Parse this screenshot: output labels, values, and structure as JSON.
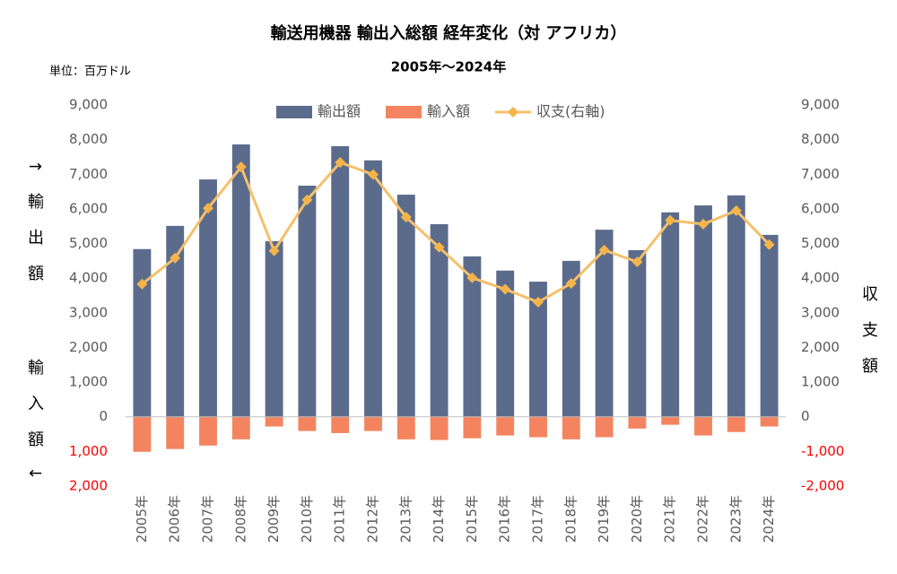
{
  "chart_data": {
    "type": "bar_line",
    "title": "輸送用機器 輸出入総額 経年変化（対 アフリカ）",
    "subtitle": "2005年～2024年",
    "unit_label": "単位：百万ドル",
    "ylabel": "↑輸出額",
    "ylabel_lower": "輸入額↓",
    "y2label": "収支額",
    "categories": [
      "2005年",
      "2006年",
      "2007年",
      "2008年",
      "2009年",
      "2010年",
      "2011年",
      "2012年",
      "2013年",
      "2014年",
      "2015年",
      "2016年",
      "2017年",
      "2018年",
      "2019年",
      "2020年",
      "2021年",
      "2022年",
      "2023年",
      "2024年"
    ],
    "series": [
      {
        "name": "輸出額",
        "type": "bar",
        "color": "#5b6b8c",
        "values": [
          4840,
          5510,
          6850,
          7860,
          5070,
          6670,
          7810,
          7400,
          6410,
          5560,
          4630,
          4220,
          3900,
          4500,
          5400,
          4810,
          5900,
          6100,
          6390,
          5250
        ]
      },
      {
        "name": "輸入額",
        "type": "bar",
        "color": "#f4845f",
        "values": [
          -1010,
          -930,
          -830,
          -650,
          -280,
          -410,
          -470,
          -410,
          -650,
          -670,
          -620,
          -540,
          -590,
          -650,
          -590,
          -340,
          -230,
          -540,
          -440,
          -280
        ]
      },
      {
        "name": "収支(右軸)",
        "type": "line",
        "axis": "y2",
        "color": "#f5c06a",
        "marker_color": "#f5b44a",
        "values": [
          3830,
          4580,
          6020,
          7210,
          4790,
          6260,
          7340,
          6990,
          5760,
          4890,
          4010,
          3680,
          3310,
          3850,
          4810,
          4470,
          5670,
          5560,
          5950,
          4970
        ]
      }
    ],
    "ylim": [
      -2000,
      9000
    ],
    "yticks": [
      {
        "value": -2000,
        "label": "2,000"
      },
      {
        "value": -1000,
        "label": "1,000"
      },
      0,
      {
        "value": 1000,
        "label": "1,000"
      },
      {
        "value": 2000,
        "label": "2,000"
      },
      {
        "value": 3000,
        "label": "3,000"
      },
      {
        "value": 4000,
        "label": "4,000"
      },
      {
        "value": 5000,
        "label": "5,000"
      },
      {
        "value": 6000,
        "label": "6,000"
      },
      {
        "value": 7000,
        "label": "7,000"
      },
      {
        "value": 8000,
        "label": "8,000"
      },
      {
        "value": 9000,
        "label": "9,000"
      }
    ],
    "y2lim": [
      -2000,
      9000
    ],
    "y2ticks": [
      {
        "value": -2000,
        "label": "-2,000"
      },
      {
        "value": -1000,
        "label": "-1,000"
      },
      0,
      {
        "value": 1000,
        "label": "1,000"
      },
      {
        "value": 2000,
        "label": "2,000"
      },
      {
        "value": 3000,
        "label": "3,000"
      },
      {
        "value": 4000,
        "label": "4,000"
      },
      {
        "value": 5000,
        "label": "5,000"
      },
      {
        "value": 6000,
        "label": "6,000"
      },
      {
        "value": 7000,
        "label": "7,000"
      },
      {
        "value": 8000,
        "label": "8,000"
      },
      {
        "value": 9000,
        "label": "9,000"
      }
    ],
    "negative_tick_color": "#ff0000",
    "grid": false,
    "legend": "top"
  }
}
